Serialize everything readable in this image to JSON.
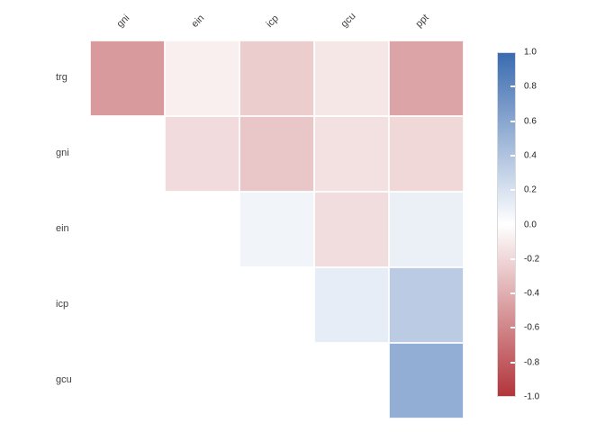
{
  "chart_data": {
    "type": "heatmap",
    "subtype": "correlation-matrix-upper-triangle",
    "title": "",
    "rows": [
      "trg",
      "gni",
      "ein",
      "icp",
      "gcu"
    ],
    "cols": [
      "gni",
      "ein",
      "icp",
      "gcu",
      "ppt"
    ],
    "values": [
      [
        -0.5,
        -0.08,
        -0.25,
        -0.12,
        -0.45
      ],
      [
        null,
        -0.18,
        -0.28,
        -0.15,
        -0.2
      ],
      [
        null,
        null,
        0.07,
        -0.17,
        0.1
      ],
      [
        null,
        null,
        null,
        0.12,
        0.35
      ],
      [
        null,
        null,
        null,
        null,
        0.55
      ]
    ],
    "value_range": [
      -1,
      1
    ],
    "colorscale": {
      "neg": "#b2353b",
      "mid": "#ffffff",
      "pos": "#3a6bb0"
    },
    "colorbar_ticks": [
      "1.0",
      "0.8",
      "0.6",
      "0.4",
      "0.2",
      "0.0",
      "-0.2",
      "-0.4",
      "-0.6",
      "-0.8",
      "-1.0"
    ],
    "legend_position": "right",
    "grid": false
  }
}
